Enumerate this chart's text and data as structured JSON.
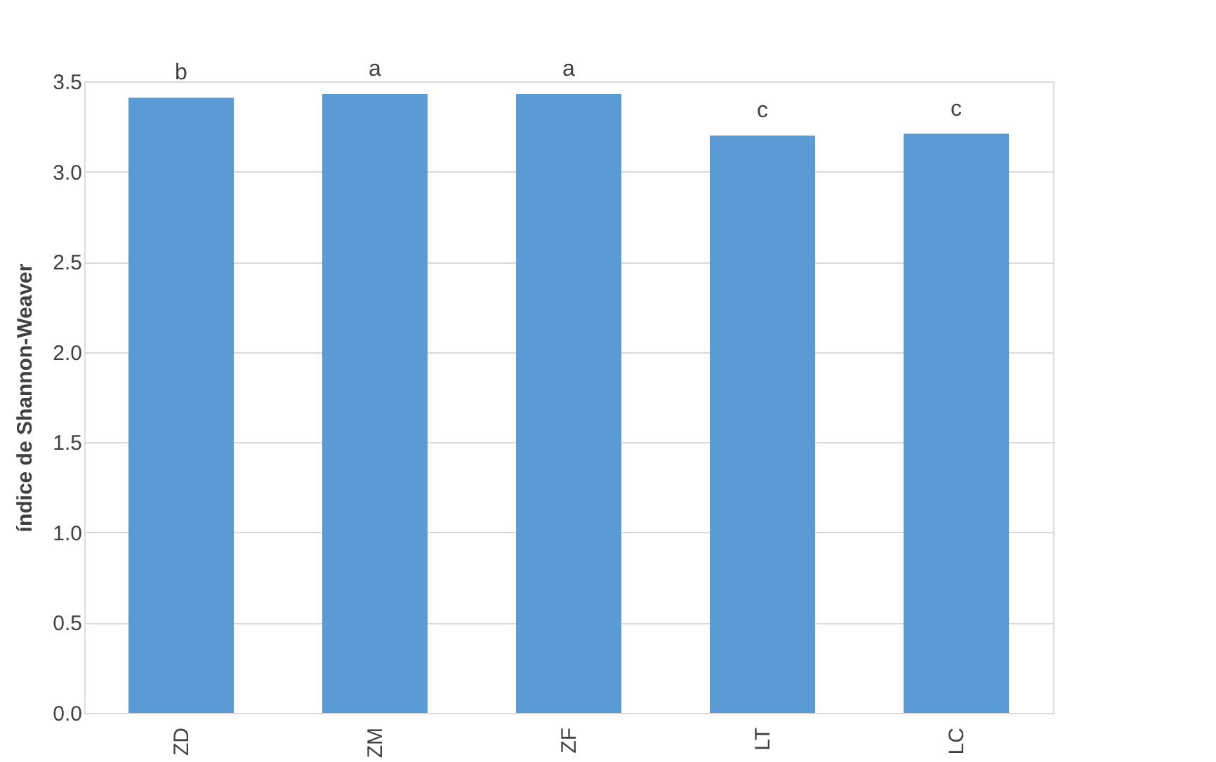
{
  "chart_data": {
    "type": "bar",
    "ylabel": "índice de Shannon-Weaver",
    "categories": [
      "ZD",
      "ZM",
      "ZF",
      "LT",
      "LC"
    ],
    "values": [
      3.41,
      3.43,
      3.43,
      3.2,
      3.21
    ],
    "color": "#5b9bd5",
    "ylim": [
      0,
      3.5
    ],
    "yticks": [
      {
        "value": 0,
        "label": "0.0"
      },
      {
        "value": 0.5,
        "label": "0.5"
      },
      {
        "value": 1,
        "label": "1.0"
      },
      {
        "value": 1.5,
        "label": "1.5"
      },
      {
        "value": 2,
        "label": "2.0"
      },
      {
        "value": 2.5,
        "label": "2.5"
      },
      {
        "value": 3,
        "label": "3.0"
      },
      {
        "value": 3.5,
        "label": "3.5"
      }
    ],
    "grid": "y",
    "annotations": [
      {
        "text": "b",
        "x": "ZD",
        "y": 3.41
      },
      {
        "text": "a",
        "x": "ZM",
        "y": 3.43
      },
      {
        "text": "a",
        "x": "ZF",
        "y": 3.43
      },
      {
        "text": "c",
        "x": "LT",
        "y": 3.2
      },
      {
        "text": "c",
        "x": "LC",
        "y": 3.21
      }
    ]
  }
}
